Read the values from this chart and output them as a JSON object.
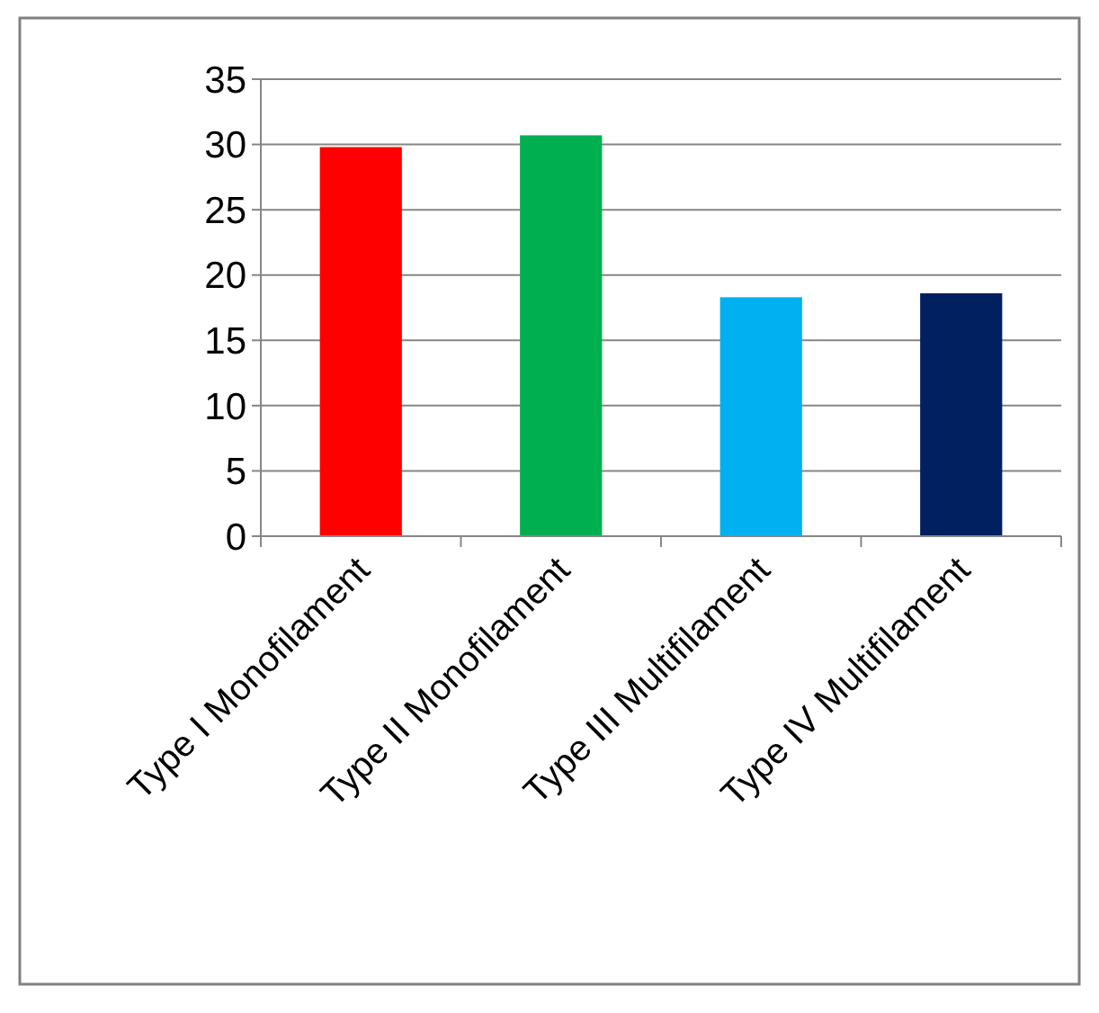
{
  "chart_data": {
    "type": "bar",
    "categories": [
      "Type I Monofilament",
      "Type II Monofilament",
      "Type III Multifilament",
      "Type IV Multifilament"
    ],
    "values": [
      29.8,
      30.7,
      18.3,
      18.6
    ],
    "colors": [
      "#ff0000",
      "#00b050",
      "#00b0f0",
      "#002060"
    ],
    "ylim": [
      0,
      35
    ],
    "yticks": [
      0,
      5,
      10,
      15,
      20,
      25,
      30,
      35
    ],
    "grid": "y"
  }
}
